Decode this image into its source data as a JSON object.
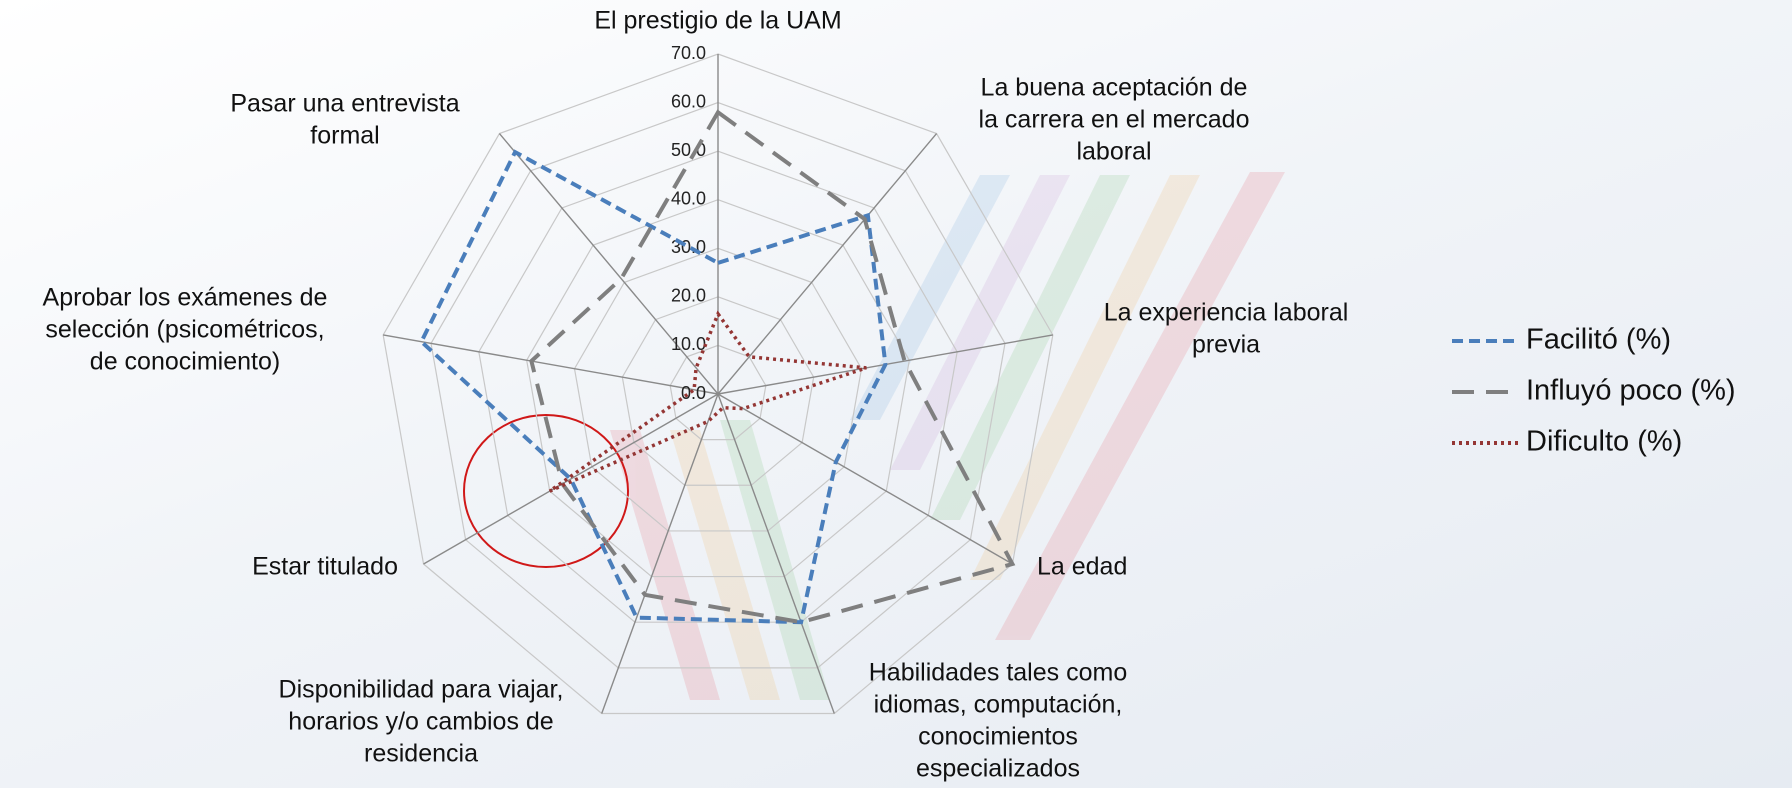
{
  "chart_data": {
    "type": "radar",
    "categories": [
      [
        "El prestigio de la UAM"
      ],
      [
        "La buena aceptación de",
        "la carrera en el mercado",
        "laboral"
      ],
      [
        "La experiencia laboral",
        "previa"
      ],
      [
        "La edad"
      ],
      [
        "Habilidades tales como",
        "idiomas, computación,",
        "conocimientos",
        "especializados"
      ],
      [
        "Disponibilidad para viajar,",
        "horarios y/o cambios de",
        "residencia"
      ],
      [
        "Estar titulado"
      ],
      [
        "Aprobar los exámenes de",
        "selección (psicométricos,",
        "de conocimiento)"
      ],
      [
        "Pasar una entrevista",
        "formal"
      ]
    ],
    "series": [
      {
        "name": "Facilitó (%)",
        "color": "#4a7ebb",
        "dash": "dashed",
        "values": [
          27,
          48,
          35,
          28,
          50,
          49,
          35,
          62,
          65
        ]
      },
      {
        "name": "Influyó poco (%)",
        "color": "#7f7f7f",
        "dash": "longdash",
        "values": [
          58,
          47,
          39,
          70,
          50,
          44,
          37,
          39,
          31
        ]
      },
      {
        "name": "Dificulto (%)",
        "color": "#943634",
        "dash": "dotted",
        "values": [
          16.5,
          10,
          31,
          6,
          3,
          6,
          40,
          5,
          7
        ]
      }
    ],
    "ylim": [
      0,
      70
    ],
    "yticks": [
      {
        "value": 0,
        "label": "0.0"
      },
      {
        "value": 10,
        "label": "10.0"
      },
      {
        "value": 20,
        "label": "20.0"
      },
      {
        "value": 30,
        "label": "30.0"
      },
      {
        "value": 40,
        "label": "40.0"
      },
      {
        "value": 50,
        "label": "50.0"
      },
      {
        "value": 60,
        "label": "60.0"
      },
      {
        "value": 70,
        "label": "70.0"
      }
    ],
    "grid": true,
    "legend": "right"
  }
}
